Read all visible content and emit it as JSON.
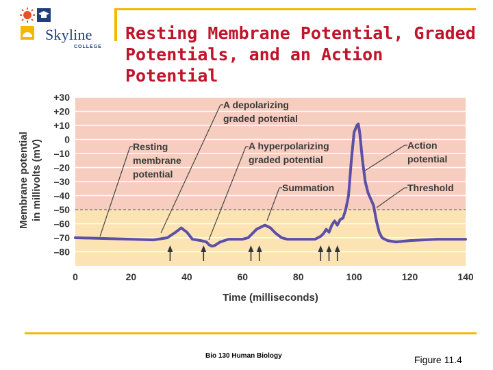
{
  "slide": {
    "title": "Resting Membrane Potential, Graded Potentials, and an Action Potential",
    "footer_center": "Bio 130 Human Biology",
    "footer_right": "Figure 11.4"
  },
  "logo": {
    "name": "Skyline",
    "sub": "COLLEGE",
    "colors": {
      "sun": "#e8502a",
      "navy": "#1f3f7a"
    }
  },
  "chart_data": {
    "type": "line",
    "xlabel": "Time (milliseconds)",
    "ylabel": [
      "Membrane potential",
      "in millivolts (mV)"
    ],
    "xlim": [
      0,
      140
    ],
    "ylim": [
      -90,
      30
    ],
    "xticks": [
      0,
      20,
      40,
      60,
      80,
      100,
      120,
      140
    ],
    "yticks": [
      30,
      20,
      10,
      0,
      -10,
      -20,
      -30,
      -40,
      -50,
      -60,
      -70,
      -80
    ],
    "ytick_labels": [
      "+30",
      "+20",
      "+10",
      "0",
      "–10",
      "–20",
      "–30",
      "–40",
      "–50",
      "–60",
      "–70",
      "–80"
    ],
    "threshold": -50,
    "bands": [
      {
        "from": -50,
        "to": 30,
        "color": "#f6cdbf"
      },
      {
        "from": -90,
        "to": -50,
        "color": "#fbe3b3"
      }
    ],
    "line_color": "#5b4fa8",
    "series": [
      {
        "x": [
          0,
          10,
          20,
          28,
          33,
          36,
          38,
          40,
          42,
          45,
          47,
          48,
          49,
          50,
          52,
          55,
          60,
          62,
          64,
          65,
          66,
          67,
          68,
          69,
          70,
          72,
          74,
          76,
          80,
          86,
          88,
          89,
          90,
          91,
          92,
          93,
          94,
          95,
          96,
          97,
          98,
          99,
          100,
          101,
          101.5,
          102,
          103,
          104,
          105,
          107,
          108,
          109,
          110,
          112,
          115,
          120,
          130,
          140
        ],
        "y": [
          -70,
          -70.5,
          -71,
          -71.5,
          -70,
          -66,
          -63,
          -66,
          -71,
          -72,
          -73,
          -75,
          -76,
          -75.5,
          -73,
          -71,
          -71,
          -70,
          -66,
          -64,
          -63,
          -62,
          -61,
          -62,
          -63,
          -67,
          -70,
          -71,
          -71,
          -71,
          -69,
          -67,
          -64,
          -66,
          -61,
          -58,
          -61,
          -57,
          -56,
          -50,
          -40,
          -15,
          5,
          10,
          11,
          5,
          -15,
          -30,
          -38,
          -47,
          -58,
          -66,
          -70,
          -72,
          -73,
          -72,
          -71,
          -71
        ]
      }
    ],
    "stimulus_arrows_x": [
      34,
      46,
      63,
      66,
      88,
      91,
      94
    ],
    "annotations": [
      {
        "lines": [
          "A depolarizing",
          "graded potential"
        ]
      },
      {
        "lines": [
          "Resting",
          "membrane",
          "potential"
        ]
      },
      {
        "lines": [
          "A hyperpolarizing",
          "graded potential"
        ]
      },
      {
        "lines": [
          "Summation"
        ]
      },
      {
        "lines": [
          "Action",
          "potential"
        ]
      },
      {
        "lines": [
          "Threshold"
        ]
      }
    ]
  }
}
